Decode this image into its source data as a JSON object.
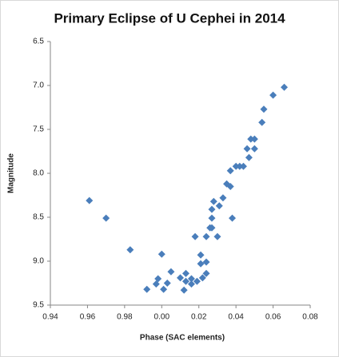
{
  "chart_data": {
    "type": "scatter",
    "title": "Primary Eclipse of U Cephei in 2014",
    "x_label": "Phase (SAC elements)",
    "y_label": "Magnitude",
    "color": "#4a7ebb",
    "y_inverted": true,
    "xlim": [
      -0.06,
      0.08
    ],
    "xticks": [
      {
        "value": -0.06,
        "label": "0.94"
      },
      {
        "value": -0.04,
        "label": "0.96"
      },
      {
        "value": -0.02,
        "label": "0.98"
      },
      {
        "value": 0,
        "label": "0.00"
      },
      0.02,
      0.04,
      0.06,
      0.08
    ],
    "ylim": [
      6.5,
      9.5
    ],
    "yticks": [
      6.5,
      {
        "value": 7,
        "label": "7.0"
      },
      7.5,
      {
        "value": 8,
        "label": "8.0"
      },
      8.5,
      {
        "value": 9,
        "label": "9.0"
      },
      9.5
    ],
    "x": [
      -0.039,
      -0.03,
      -0.017,
      0.0,
      -0.008,
      -0.003,
      -0.002,
      0.001,
      0.003,
      0.005,
      0.01,
      0.012,
      0.013,
      0.013,
      0.016,
      0.016,
      0.019,
      0.018,
      0.021,
      0.021,
      0.022,
      0.024,
      0.024,
      0.024,
      0.026,
      0.027,
      0.027,
      0.027,
      0.028,
      0.03,
      0.031,
      0.033,
      0.035,
      0.037,
      0.037,
      0.038,
      0.04,
      0.042,
      0.044,
      0.046,
      0.047,
      0.048,
      0.05,
      0.05,
      0.054,
      0.055,
      0.06,
      0.066
    ],
    "values": [
      8.31,
      8.51,
      8.87,
      8.92,
      9.32,
      9.26,
      9.2,
      9.32,
      9.25,
      9.12,
      9.19,
      9.33,
      9.14,
      9.23,
      9.26,
      9.2,
      9.23,
      8.72,
      8.93,
      9.03,
      9.19,
      9.14,
      9.01,
      8.72,
      8.62,
      8.62,
      8.51,
      8.41,
      8.32,
      8.72,
      8.37,
      8.28,
      8.12,
      7.97,
      8.15,
      8.51,
      7.92,
      7.92,
      7.92,
      7.72,
      7.82,
      7.61,
      7.72,
      7.61,
      7.42,
      7.27,
      7.11,
      7.02
    ]
  }
}
